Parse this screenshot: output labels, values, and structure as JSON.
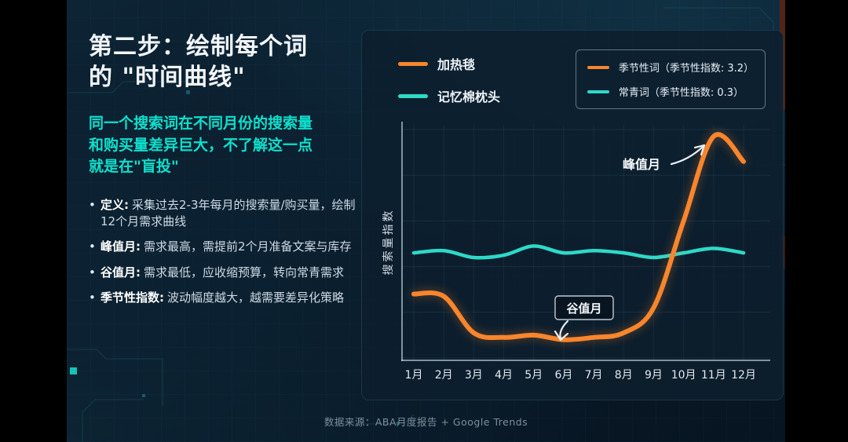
{
  "page": {
    "background": "#000000",
    "accent_cyan": "#0ce0cd",
    "accent_orange": "#f9852c",
    "footer": "数据来源：ABA月度报告 + Google Trends"
  },
  "left_panel": {
    "title_line1": "第二步：绘制每个词",
    "title_line2": "的 \"时间曲线\"",
    "subtitle_lines": [
      "同一个搜索词在不同月份的搜索量",
      "和购买量差异巨大，不了解这一点",
      "就是在\"盲投\""
    ],
    "bullets": [
      {
        "term": "定义:",
        "desc": "采集过去2-3年每月的搜索量/购买量，绘制12个月需求曲线"
      },
      {
        "term": "峰值月:",
        "desc": "需求最高，需提前2个月准备文案与库存"
      },
      {
        "term": "谷值月:",
        "desc": "需求最低，应收缩预算，转向常青需求"
      },
      {
        "term": "季节性指数:",
        "desc": "波动幅度越大，越需要差异化策略"
      }
    ]
  },
  "chart": {
    "legend_left": [
      {
        "label": "加热毯",
        "color": "#f9852c"
      },
      {
        "label": "记忆棉枕头",
        "color": "#2ed9c8"
      }
    ],
    "legend_right": [
      {
        "label": "季节性词（季节性指数: 3.2）",
        "color": "#f9852c"
      },
      {
        "label": "常青词（季节性指数: 0.3）",
        "color": "#2ed9c8"
      }
    ],
    "ylabel": "搜索量指数",
    "annotations": {
      "peak": "峰值月",
      "valley": "谷值月"
    }
  },
  "chart_data": {
    "type": "line",
    "x": [
      "1月",
      "2月",
      "3月",
      "4月",
      "5月",
      "6月",
      "7月",
      "8月",
      "9月",
      "10月",
      "11月",
      "12月"
    ],
    "series": [
      {
        "name": "加热毯（季节性词）",
        "color": "#f9852c",
        "values": [
          28,
          27,
          11,
          9,
          10,
          8,
          9,
          11,
          22,
          60,
          97,
          86
        ]
      },
      {
        "name": "记忆棉枕头（常青词）",
        "color": "#2ed9c8",
        "values": [
          46,
          47,
          44,
          45,
          49,
          46,
          47,
          46,
          44,
          46,
          48,
          46
        ]
      }
    ],
    "title": "",
    "xlabel": "",
    "ylabel": "搜索量指数",
    "ylim": [
      0,
      100
    ],
    "grid": true,
    "legend_position": "top"
  }
}
